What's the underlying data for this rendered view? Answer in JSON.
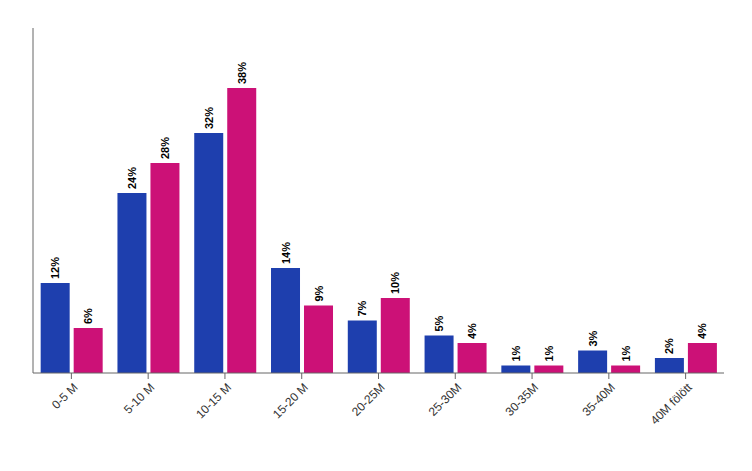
{
  "chart_data": {
    "type": "bar",
    "categories": [
      "0-5 M",
      "5-10 M",
      "10-15 M",
      "15-20 M",
      "20-25M",
      "25-30M",
      "30-35M",
      "35-40M",
      "40M fölött"
    ],
    "series": [
      {
        "color": "#1e3fae",
        "values": [
          12,
          24,
          32,
          14,
          7,
          5,
          1,
          3,
          2
        ],
        "value_labels": [
          "12%",
          "24%",
          "32%",
          "14%",
          "7%",
          "5%",
          "1%",
          "3%",
          "2%"
        ]
      },
      {
        "color": "#cc1177",
        "values": [
          6,
          28,
          38,
          9,
          10,
          4,
          1,
          1,
          4
        ],
        "value_labels": [
          "6%",
          "28%",
          "38%",
          "9%",
          "10%",
          "4%",
          "1%",
          "1%",
          "4%"
        ]
      }
    ],
    "ylim": [
      0,
      46
    ],
    "grid": false,
    "data_labels": true,
    "tick_labels": "x"
  }
}
